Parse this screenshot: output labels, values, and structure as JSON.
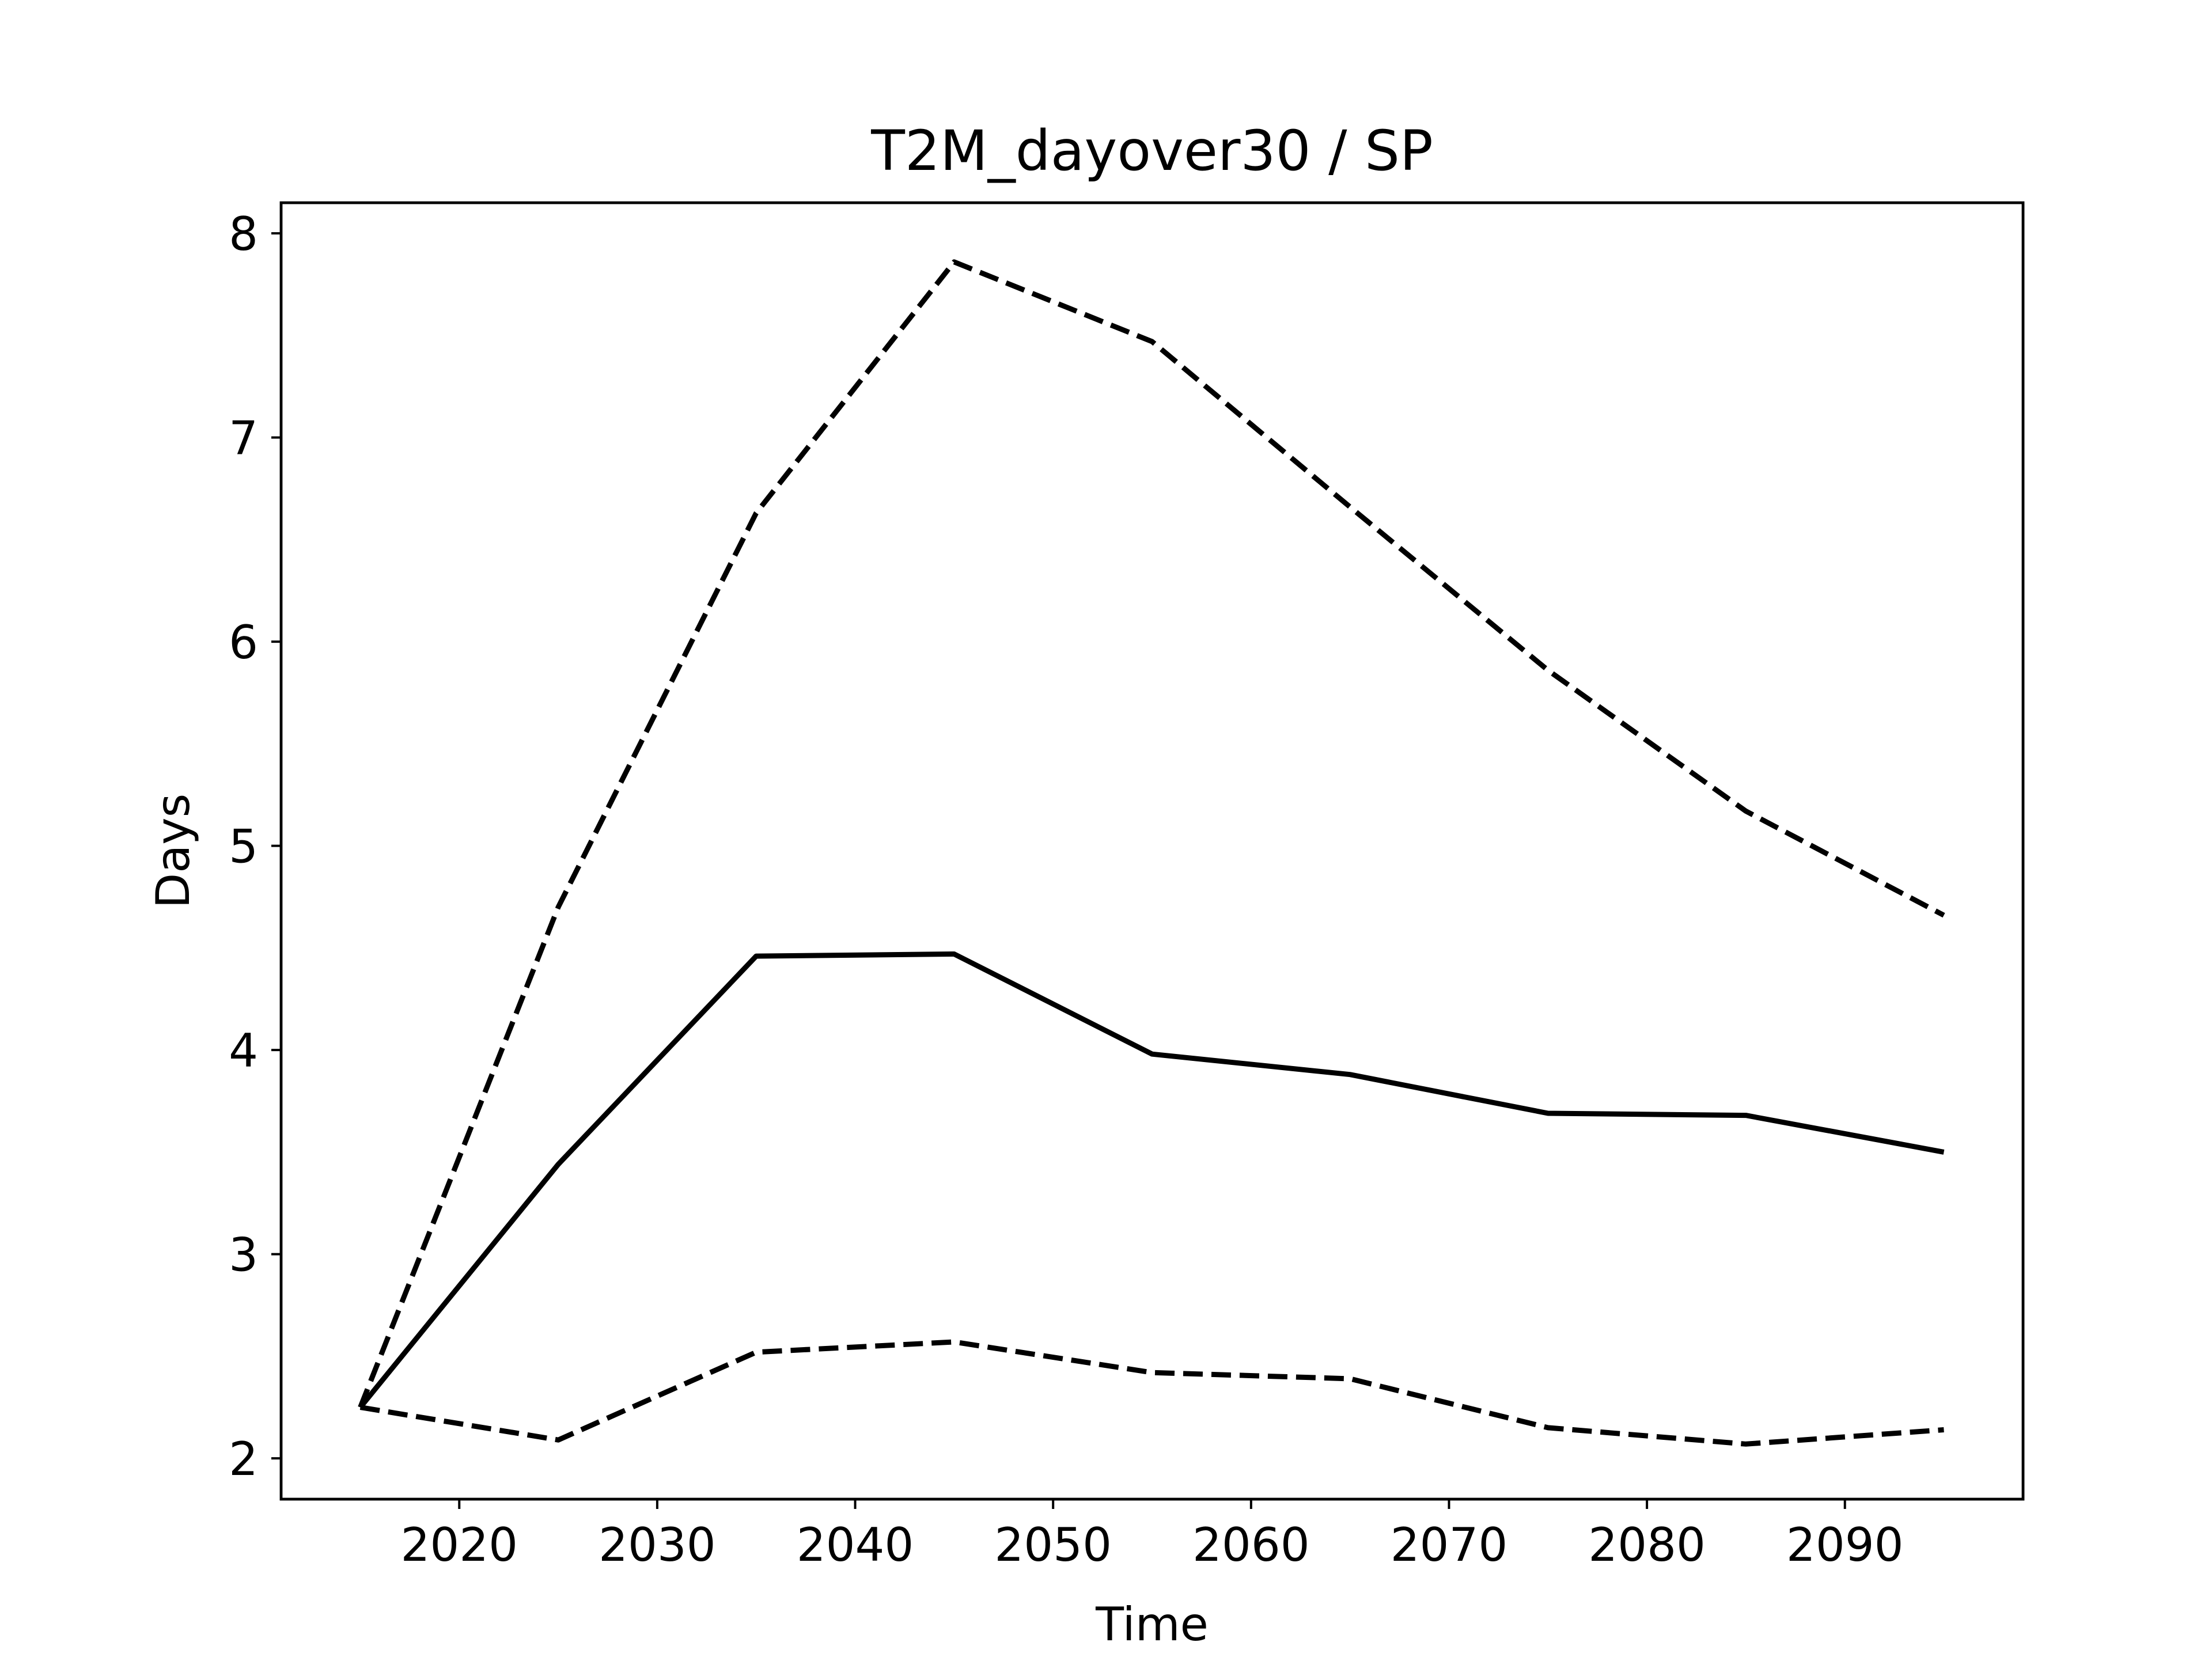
{
  "chart_data": {
    "type": "line",
    "title": "T2M_dayover30 / SP",
    "xlabel": "Time",
    "ylabel": "Days",
    "xlim": [
      2011,
      2099
    ],
    "ylim": [
      1.8,
      8.15
    ],
    "xticks": [
      2020,
      2030,
      2040,
      2050,
      2060,
      2070,
      2080,
      2090
    ],
    "yticks": [
      2,
      3,
      4,
      5,
      6,
      7,
      8
    ],
    "grid": false,
    "legend": false,
    "x": [
      2015,
      2025,
      2035,
      2045,
      2055,
      2065,
      2075,
      2085,
      2095
    ],
    "series": [
      {
        "style": "solid",
        "color": "#000000",
        "values": [
          2.25,
          3.44,
          4.46,
          4.47,
          3.98,
          3.88,
          3.69,
          3.68,
          3.5
        ]
      },
      {
        "style": "dashed",
        "color": "#000000",
        "values": [
          2.25,
          4.7,
          6.63,
          7.86,
          7.47,
          6.66,
          5.86,
          5.17,
          4.66
        ]
      },
      {
        "style": "dashed",
        "color": "#000000",
        "values": [
          2.25,
          2.09,
          2.52,
          2.57,
          2.42,
          2.39,
          2.15,
          2.07,
          2.14
        ]
      }
    ]
  }
}
